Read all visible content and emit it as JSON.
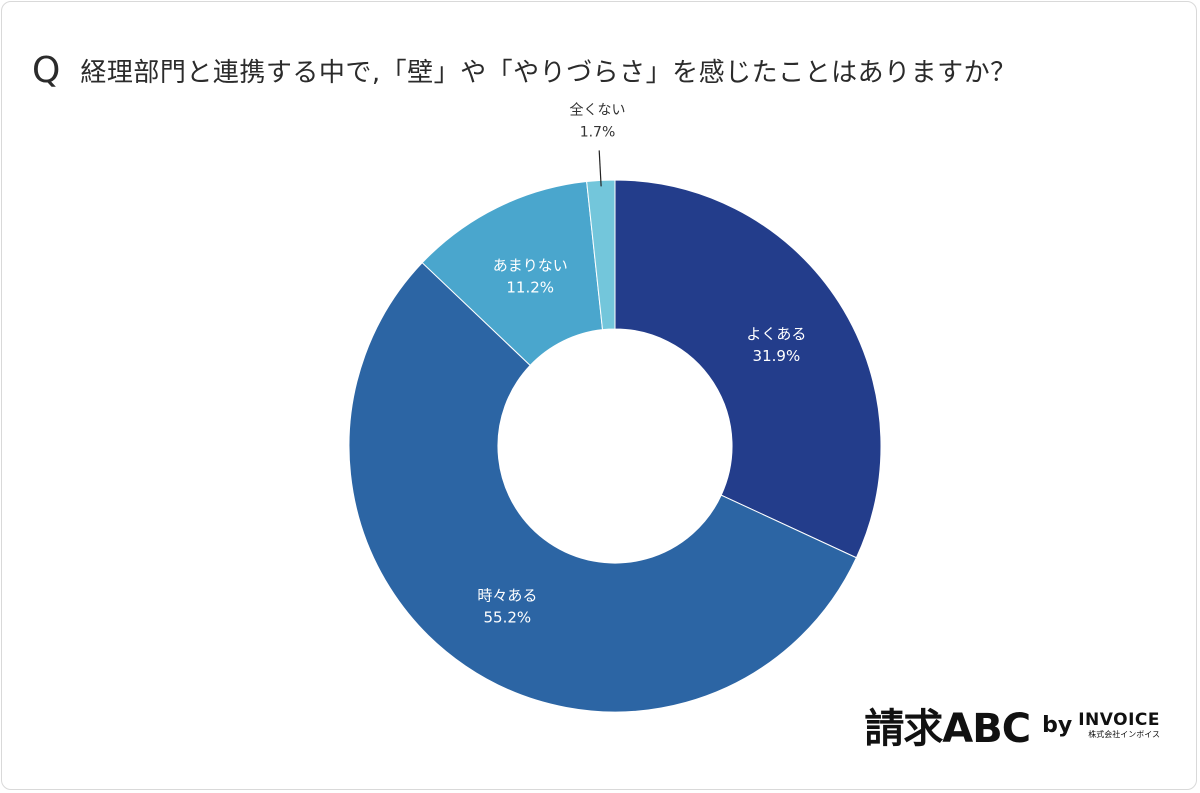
{
  "header": {
    "q_mark": "Q",
    "question": "経理部門と連携する中で,「壁」や「やりづらさ」を感じたことはありますか？"
  },
  "chart_data": {
    "type": "pie",
    "title": "経理部門と連携する中で,「壁」や「やりづらさ」を感じたことはありますか？",
    "legend": "none",
    "categories": [
      "よくある",
      "時々ある",
      "あまりない",
      "全くない"
    ],
    "values": [
      31.9,
      55.2,
      11.2,
      1.7
    ],
    "value_labels": [
      "31.9%",
      "55.2%",
      "11.2%",
      "1.7%"
    ],
    "colors": [
      "#233d8b",
      "#2c65a4",
      "#4aa6cd",
      "#73c6db"
    ],
    "hole_ratio": 0.44
  },
  "brand": {
    "main": "請求ABC",
    "by": "by",
    "invoice": "INVOICE",
    "sub": "株式会社インボイス"
  }
}
